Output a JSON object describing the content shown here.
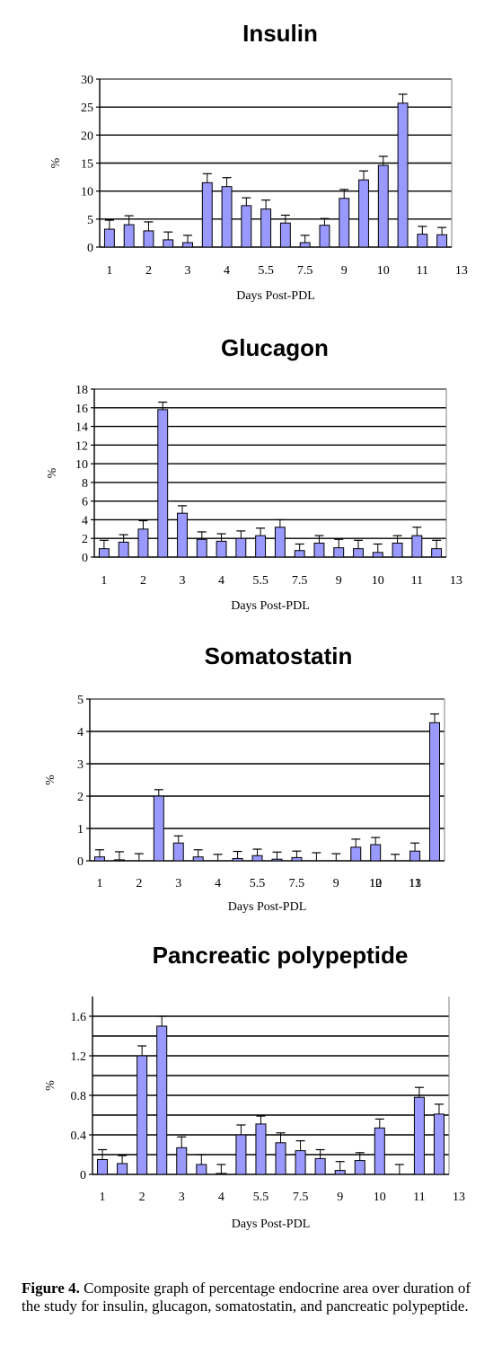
{
  "chart_data": [
    {
      "type": "bar",
      "title": "Insulin",
      "xlabel": "Days Post-PDL",
      "ylabel": "%",
      "ylim": [
        0,
        30
      ],
      "yticks": [
        "0",
        "5",
        "10",
        "15",
        "20",
        "25",
        "30"
      ],
      "xtick_labels": [
        "1",
        "2",
        "3",
        "4",
        "5.5",
        "7.5",
        "9",
        "10",
        "11",
        "13"
      ],
      "values": [
        3.2,
        4.0,
        2.9,
        1.3,
        0.8,
        11.5,
        10.8,
        7.4,
        6.8,
        4.3,
        0.8,
        3.9,
        8.7,
        12.0,
        14.6,
        25.7,
        2.3,
        2.2
      ],
      "errors": [
        1.6,
        1.6,
        1.6,
        1.4,
        1.3,
        1.6,
        1.6,
        1.4,
        1.6,
        1.4,
        1.3,
        1.2,
        1.6,
        1.6,
        1.6,
        1.6,
        1.4,
        1.3
      ],
      "grid": true,
      "bar_color": "#9999FF"
    },
    {
      "type": "bar",
      "title": "Glucagon",
      "xlabel": "Days Post-PDL",
      "ylabel": "%",
      "ylim": [
        0,
        18
      ],
      "yticks": [
        "0",
        "2",
        "4",
        "6",
        "8",
        "10",
        "12",
        "14",
        "16",
        "18"
      ],
      "xtick_labels": [
        "1",
        "2",
        "3",
        "4",
        "5.5",
        "7.5",
        "9",
        "10",
        "11",
        "13"
      ],
      "values": [
        0.9,
        1.6,
        3.0,
        15.8,
        4.7,
        1.9,
        1.7,
        2.0,
        2.3,
        3.2,
        0.7,
        1.5,
        1.0,
        0.9,
        0.5,
        1.5,
        2.3,
        0.9
      ],
      "errors": [
        0.9,
        0.8,
        0.9,
        0.8,
        0.8,
        0.8,
        0.8,
        0.8,
        0.8,
        0.8,
        0.7,
        0.8,
        0.9,
        0.9,
        0.9,
        0.8,
        0.9,
        0.9
      ],
      "grid": true,
      "bar_color": "#9999FF"
    },
    {
      "type": "bar",
      "title": "Somatostatin",
      "xlabel": "Days Post-PDL",
      "ylabel": "%",
      "ylim": [
        0,
        5
      ],
      "yticks": [
        "0",
        "1",
        "2",
        "3",
        "4",
        "5"
      ],
      "xtick_labels": [
        "1",
        "2",
        "3",
        "4",
        "5.5",
        "7.5",
        "9",
        "10",
        "11",
        "12",
        "13"
      ],
      "values": [
        0.12,
        0.03,
        0.0,
        2.0,
        0.55,
        0.12,
        0.0,
        0.07,
        0.16,
        0.05,
        0.1,
        0.0,
        0.0,
        0.42,
        0.5,
        0.0,
        0.3,
        4.27
      ],
      "errors": [
        0.22,
        0.25,
        0.22,
        0.2,
        0.22,
        0.22,
        0.2,
        0.22,
        0.2,
        0.22,
        0.2,
        0.25,
        0.22,
        0.25,
        0.22,
        0.2,
        0.25,
        0.27
      ],
      "grid": true,
      "bar_color": "#9999FF"
    },
    {
      "type": "bar",
      "title": "Pancreatic polypeptide",
      "xlabel": "Days Post-PDL",
      "ylabel": "%",
      "ylim": [
        0,
        1.8
      ],
      "yticks": [
        "0",
        "0.4",
        "0.8",
        "1.2",
        "1.6"
      ],
      "ytick_values": [
        0,
        0.4,
        0.8,
        1.2,
        1.6
      ],
      "gridlines": [
        0.2,
        0.4,
        0.6,
        0.8,
        1.0,
        1.2,
        1.4,
        1.6
      ],
      "xtick_labels": [
        "1",
        "2",
        "3",
        "4",
        "5.5",
        "7.5",
        "9",
        "10",
        "11",
        "13"
      ],
      "values": [
        0.15,
        0.11,
        1.2,
        1.5,
        0.27,
        0.1,
        0.01,
        0.4,
        0.51,
        0.32,
        0.24,
        0.16,
        0.04,
        0.14,
        0.47,
        0.0,
        0.78,
        0.61
      ],
      "errors": [
        0.1,
        0.08,
        0.1,
        0.1,
        0.11,
        0.1,
        0.09,
        0.1,
        0.08,
        0.1,
        0.1,
        0.09,
        0.09,
        0.08,
        0.09,
        0.1,
        0.1,
        0.1
      ],
      "grid": true,
      "bar_color": "#9999FF"
    }
  ],
  "caption": {
    "label": "Figure 4.",
    "text": " Composite graph of percentage endocrine area over duration of the study for insulin, glucagon, somatostatin, and pancreatic polypeptide."
  }
}
